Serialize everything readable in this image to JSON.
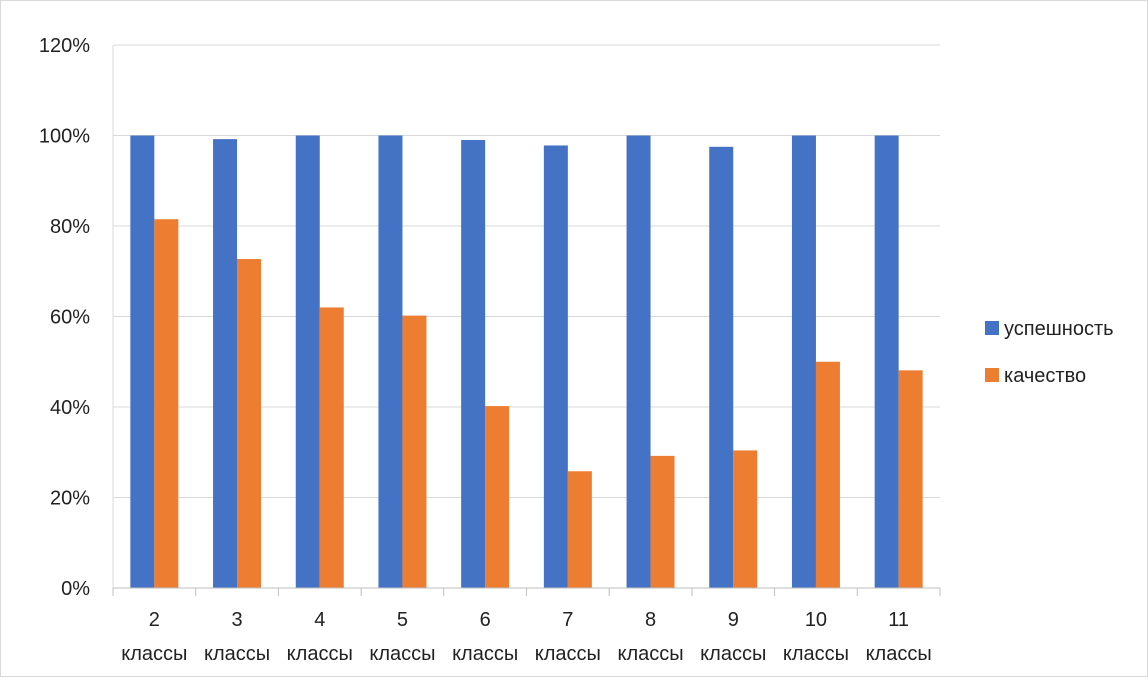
{
  "chart_data": {
    "type": "bar",
    "categories": [
      {
        "number": "2",
        "word": "классы"
      },
      {
        "number": "3",
        "word": "классы"
      },
      {
        "number": "4",
        "word": "классы"
      },
      {
        "number": "5",
        "word": "классы"
      },
      {
        "number": "6",
        "word": "классы"
      },
      {
        "number": "7",
        "word": "классы"
      },
      {
        "number": "8",
        "word": "классы"
      },
      {
        "number": "9",
        "word": "классы"
      },
      {
        "number": "10",
        "word": "классы"
      },
      {
        "number": "11",
        "word": "классы"
      }
    ],
    "series": [
      {
        "name": "успешность",
        "color": "#4472C4",
        "values": [
          100,
          99.2,
          100,
          100,
          99,
          97.8,
          100,
          97.5,
          100,
          100
        ]
      },
      {
        "name": "качество",
        "color": "#ED7D31",
        "values": [
          81.5,
          72.7,
          62,
          60.2,
          40.2,
          25.8,
          29.2,
          30.4,
          50,
          48.1
        ]
      }
    ],
    "ylim": [
      0,
      120
    ],
    "yticks": [
      "0%",
      "20%",
      "40%",
      "60%",
      "80%",
      "100%",
      "120%"
    ],
    "ytick_values": [
      0,
      20,
      40,
      60,
      80,
      100,
      120
    ],
    "grid": true,
    "legend": "right",
    "title": "",
    "xlabel": "",
    "ylabel": ""
  }
}
